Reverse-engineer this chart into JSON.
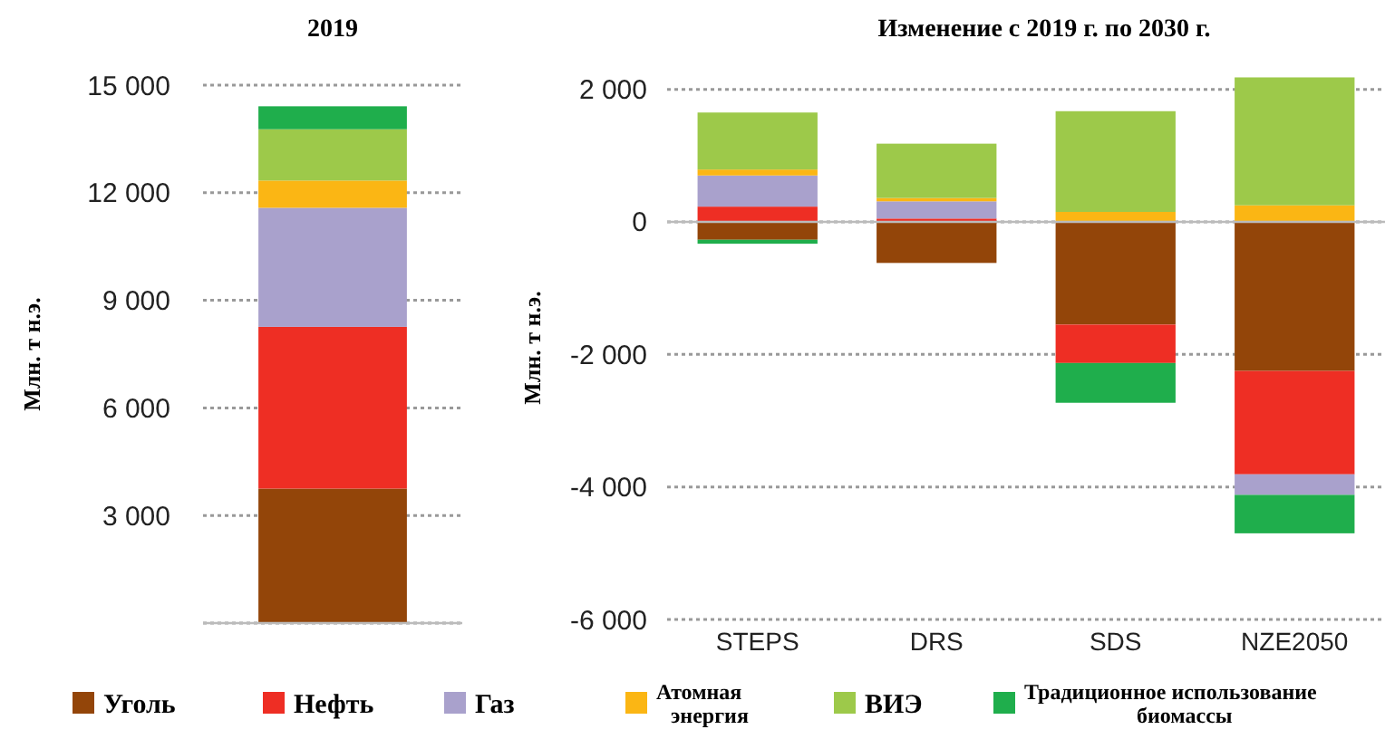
{
  "chart_data": [
    {
      "type": "bar",
      "title": "2019",
      "ylabel": "Млн. т н.э.",
      "categories": [
        null
      ],
      "stacked": true,
      "ylim": [
        0,
        15000
      ],
      "yticks": [
        {
          "value": 0,
          "label": null
        },
        {
          "value": 3000,
          "label": "3 000"
        },
        {
          "value": 6000,
          "label": "6 000"
        },
        {
          "value": 9000,
          "label": "9 000"
        },
        {
          "value": 12000,
          "label": "12 000"
        },
        {
          "value": 15000,
          "label": "15 000"
        }
      ],
      "grid": "y",
      "legend": "bottom",
      "series": [
        {
          "name": "Уголь",
          "color": "#934509",
          "values": [
            3750
          ]
        },
        {
          "name": "Нефть",
          "color": "#ee2e24",
          "values": [
            4510
          ]
        },
        {
          "name": "Газ",
          "color": "#a9a1cc",
          "values": [
            3320
          ]
        },
        {
          "name": "Атомная энергия",
          "color": "#fbb614",
          "values": [
            760
          ]
        },
        {
          "name": "ВИЭ",
          "color": "#9dc94a",
          "values": [
            1430
          ]
        },
        {
          "name": "Традиционное использование биомассы",
          "color": "#1fae4c",
          "values": [
            640
          ]
        }
      ]
    },
    {
      "type": "bar",
      "title": "Изменение с 2019 г. по 2030 г.",
      "ylabel": "Млн. т н.э.",
      "categories": [
        "STEPS",
        "DRS",
        "SDS",
        "NZE2050"
      ],
      "stacked": true,
      "ylim": [
        -6000,
        2200
      ],
      "yticks": [
        {
          "value": -6000,
          "label": "-6 000"
        },
        {
          "value": -4000,
          "label": "-4 000"
        },
        {
          "value": -2000,
          "label": "-2 000"
        },
        0,
        {
          "value": 2000,
          "label": "2 000"
        }
      ],
      "grid": "y",
      "series": [
        {
          "color": "#934509",
          "values": [
            -270,
            -620,
            -1550,
            -2250
          ]
        },
        {
          "color": "#ee2e24",
          "values": [
            230,
            50,
            -580,
            -1560
          ]
        },
        {
          "color": "#a9a1cc",
          "values": [
            470,
            260,
            0,
            -310
          ]
        },
        {
          "color": "#fbb614",
          "values": [
            90,
            50,
            150,
            250
          ]
        },
        {
          "color": "#9dc94a",
          "values": [
            860,
            820,
            1520,
            1930
          ]
        },
        {
          "color": "#1fae4c",
          "values": [
            -60,
            0,
            -600,
            -580
          ]
        }
      ]
    }
  ]
}
